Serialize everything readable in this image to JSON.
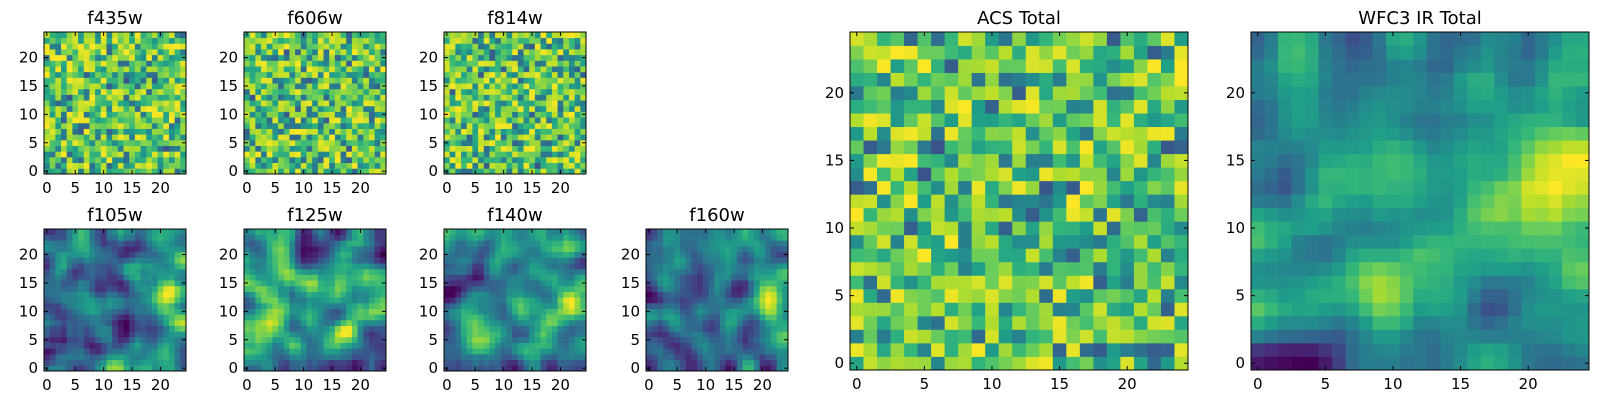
{
  "chart_data": [
    {
      "type": "heatmap",
      "title": "f435w",
      "xticks": [
        "0",
        "5",
        "10",
        "15",
        "20"
      ],
      "yticks": [
        "0",
        "5",
        "10",
        "15",
        "20"
      ],
      "xlim": [
        -0.5,
        24.5
      ],
      "ylim": [
        -0.5,
        24.5
      ],
      "grid": "25x25",
      "colormap": "viridis",
      "character": "noise",
      "seed": 11
    },
    {
      "type": "heatmap",
      "title": "f606w",
      "xticks": [
        "0",
        "5",
        "10",
        "15",
        "20"
      ],
      "yticks": [
        "0",
        "5",
        "10",
        "15",
        "20"
      ],
      "xlim": [
        -0.5,
        24.5
      ],
      "ylim": [
        -0.5,
        24.5
      ],
      "grid": "25x25",
      "colormap": "viridis",
      "character": "noise",
      "seed": 23
    },
    {
      "type": "heatmap",
      "title": "f814w",
      "xticks": [
        "0",
        "5",
        "10",
        "15",
        "20"
      ],
      "yticks": [
        "0",
        "5",
        "10",
        "15",
        "20"
      ],
      "xlim": [
        -0.5,
        24.5
      ],
      "ylim": [
        -0.5,
        24.5
      ],
      "grid": "25x25",
      "colormap": "viridis",
      "character": "noise",
      "seed": 37
    },
    {
      "type": "heatmap",
      "title": "f105w",
      "xticks": [
        "0",
        "5",
        "10",
        "15",
        "20"
      ],
      "yticks": [
        "0",
        "5",
        "10",
        "15",
        "20"
      ],
      "xlim": [
        -0.5,
        24.5
      ],
      "ylim": [
        -0.5,
        24.5
      ],
      "grid": "25x25",
      "colormap": "viridis",
      "character": "smooth",
      "seed": 41
    },
    {
      "type": "heatmap",
      "title": "f125w",
      "xticks": [
        "0",
        "5",
        "10",
        "15",
        "20"
      ],
      "yticks": [
        "0",
        "5",
        "10",
        "15",
        "20"
      ],
      "xlim": [
        -0.5,
        24.5
      ],
      "ylim": [
        -0.5,
        24.5
      ],
      "grid": "25x25",
      "colormap": "viridis",
      "character": "smooth",
      "seed": 53
    },
    {
      "type": "heatmap",
      "title": "f140w",
      "xticks": [
        "0",
        "5",
        "10",
        "15",
        "20"
      ],
      "yticks": [
        "0",
        "5",
        "10",
        "15",
        "20"
      ],
      "xlim": [
        -0.5,
        24.5
      ],
      "ylim": [
        -0.5,
        24.5
      ],
      "grid": "25x25",
      "colormap": "viridis",
      "character": "smooth",
      "seed": 67
    },
    {
      "type": "heatmap",
      "title": "f160w",
      "xticks": [
        "0",
        "5",
        "10",
        "15",
        "20"
      ],
      "yticks": [
        "0",
        "5",
        "10",
        "15",
        "20"
      ],
      "xlim": [
        -0.5,
        24.5
      ],
      "ylim": [
        -0.5,
        24.5
      ],
      "grid": "25x25",
      "colormap": "viridis",
      "character": "smooth",
      "seed": 79
    },
    {
      "type": "heatmap",
      "title": "ACS Total",
      "xticks": [
        "0",
        "5",
        "10",
        "15",
        "20"
      ],
      "yticks": [
        "0",
        "5",
        "10",
        "15",
        "20"
      ],
      "xlim": [
        -0.5,
        24.5
      ],
      "ylim": [
        -0.5,
        24.5
      ],
      "grid": "25x25",
      "colormap": "viridis",
      "character": "noise",
      "seed": 83
    },
    {
      "type": "heatmap",
      "title": "WFC3 IR Total",
      "xticks": [
        "0",
        "5",
        "10",
        "15",
        "20"
      ],
      "yticks": [
        "0",
        "5",
        "10",
        "15",
        "20"
      ],
      "xlim": [
        -0.5,
        24.5
      ],
      "ylim": [
        -0.5,
        24.5
      ],
      "grid": "25x25",
      "colormap": "viridis",
      "character": "smooth",
      "seed": 97
    }
  ]
}
